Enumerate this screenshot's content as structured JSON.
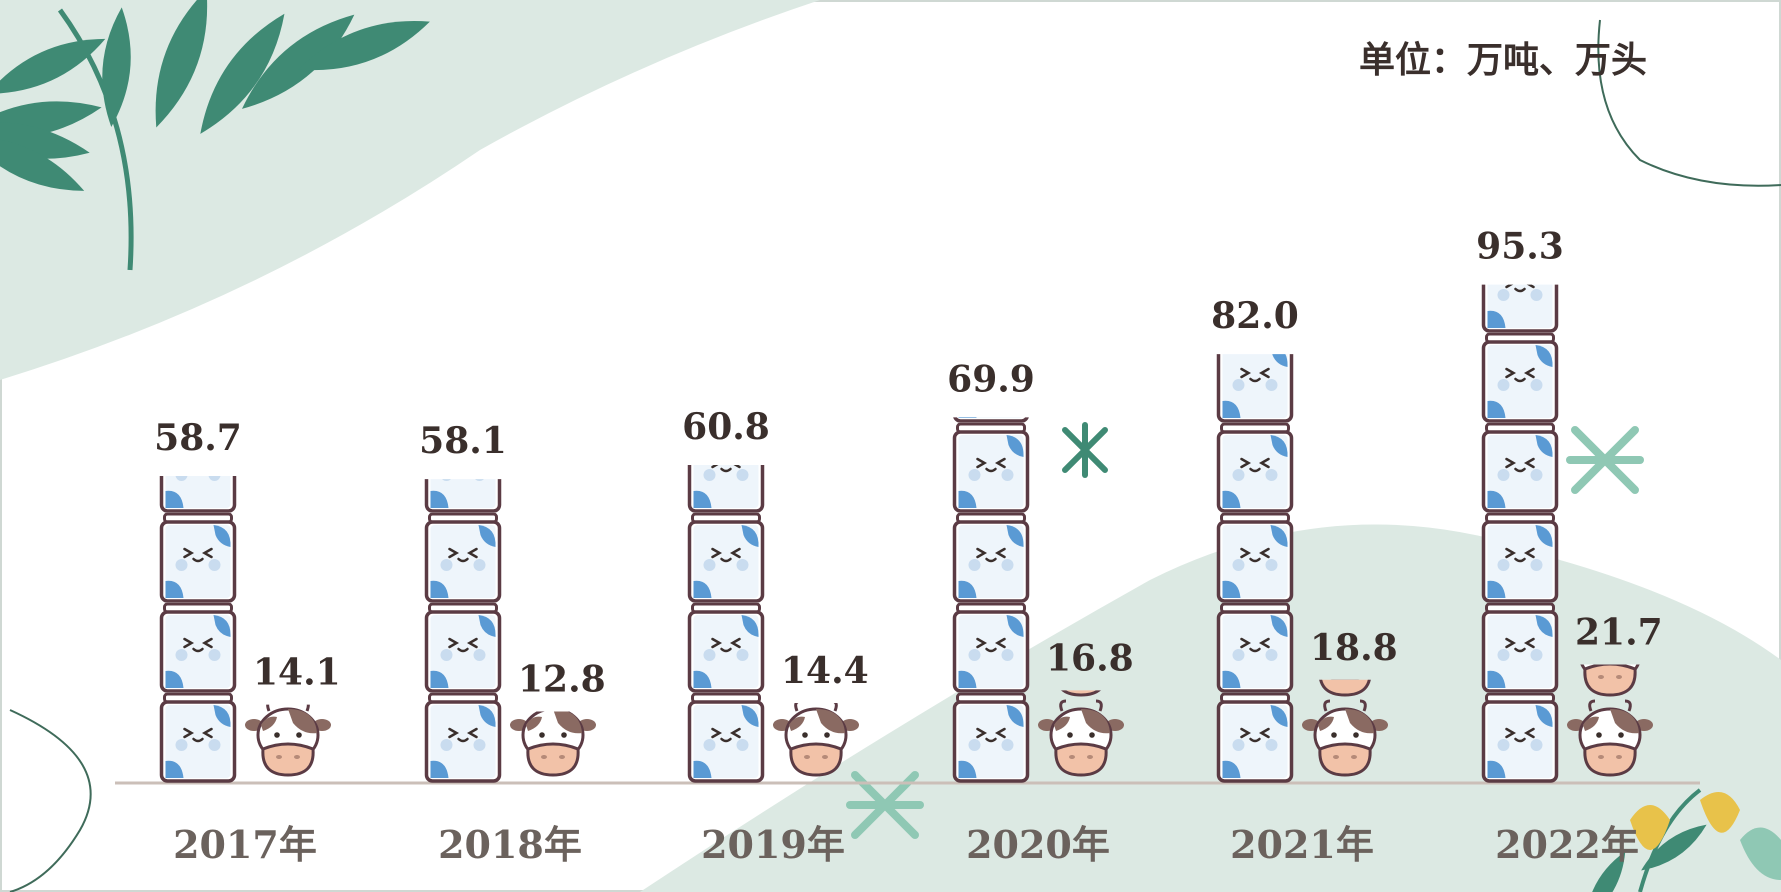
{
  "chart_data": {
    "type": "bar",
    "unit_label": "单位：万吨、万头",
    "categories": [
      "2017年",
      "2018年",
      "2019年",
      "2020年",
      "2021年",
      "2022年"
    ],
    "series": [
      {
        "values": [
          58.7,
          58.1,
          60.8,
          69.9,
          82.0,
          95.3
        ],
        "value_labels": [
          "58.7",
          "58.1",
          "60.8",
          "69.9",
          "82.0",
          "95.3"
        ],
        "icon": "milk-bottle-icon"
      },
      {
        "values": [
          14.1,
          12.8,
          14.4,
          16.8,
          18.8,
          21.7
        ],
        "value_labels": [
          "14.1",
          "12.8",
          "14.4",
          "16.8",
          "18.8",
          "21.7"
        ],
        "icon": "cow-face-icon"
      }
    ],
    "grid": false,
    "colors": {
      "bottle_outline": "#5b3b44",
      "bottle_spot": "#5a9ad4",
      "cow_spot": "#8a6a62",
      "cow_muzzle": "#f2c2a8",
      "leaf_green": "#3f8a74",
      "blob_green": "#dce9e3"
    }
  }
}
